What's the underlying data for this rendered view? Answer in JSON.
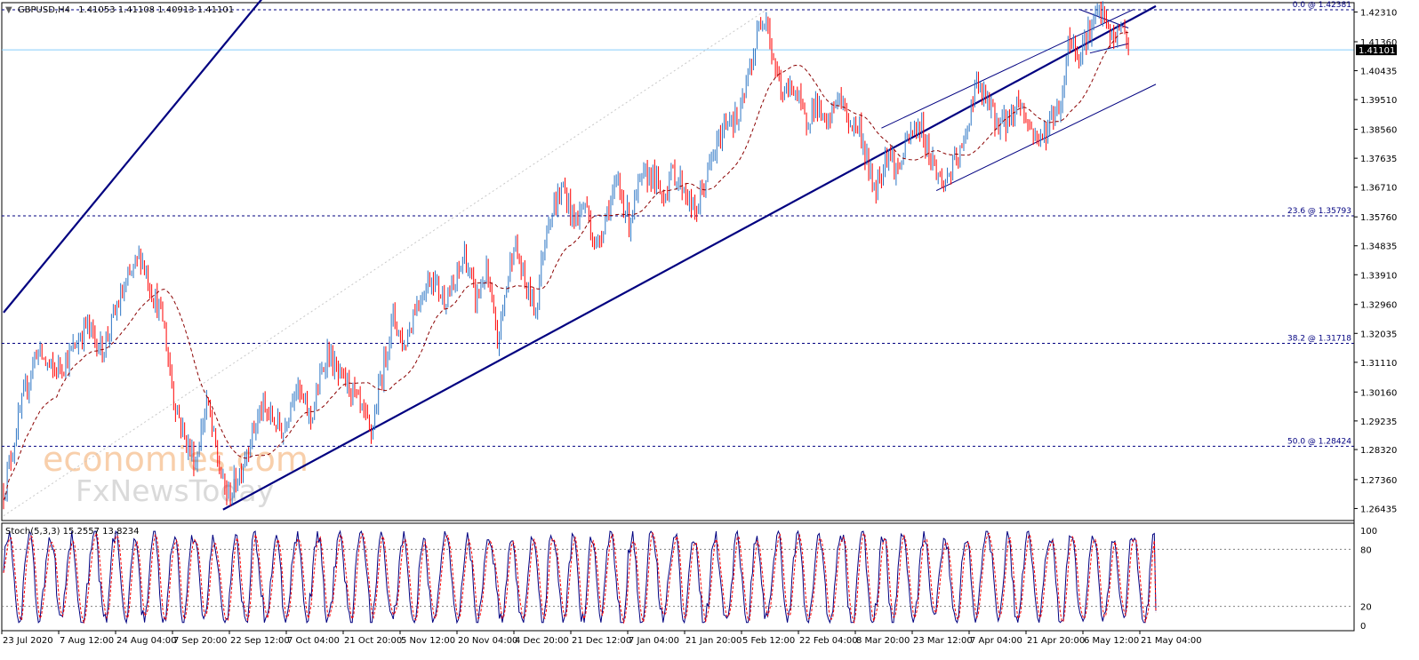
{
  "header": {
    "symbol": "GBPUSD,H4",
    "ohlc": "1.41053 1.41108 1.40913 1.41101"
  },
  "watermark": {
    "line1": "economies.com",
    "line2": "FxNewsToday"
  },
  "colors": {
    "bull": "#2b74c4",
    "bear": "#ff0000",
    "ma": "#8b0000",
    "channel": "#000080",
    "level": "#000080",
    "current_line": "#87cefa",
    "stoch_main": "#000080",
    "stoch_signal": "#ff0000",
    "grid_sep": "#808080"
  },
  "chart_data": [
    {
      "type": "candlestick",
      "title": "GBPUSD,H4",
      "ohlc_last": {
        "open": 1.41053,
        "high": 1.41108,
        "low": 1.40913,
        "close": 1.41101
      },
      "current_price_label": "1.41101",
      "ylim": [
        1.2605,
        1.4261
      ],
      "y_ticks": [
        "1.42310",
        "1.41360",
        "1.40435",
        "1.39510",
        "1.38560",
        "1.37635",
        "1.36710",
        "1.35760",
        "1.34835",
        "1.33910",
        "1.32960",
        "1.32035",
        "1.31110",
        "1.30160",
        "1.29235",
        "1.28320",
        "1.27360",
        "1.26435"
      ],
      "x_ticks": [
        "23 Jul 2020",
        "7 Aug 12:00",
        "24 Aug 04:00",
        "7 Sep 20:00",
        "22 Sep 12:00",
        "7 Oct 04:00",
        "21 Oct 20:00",
        "5 Nov 12:00",
        "20 Nov 04:00",
        "4 Dec 20:00",
        "21 Dec 12:00",
        "7 Jan 04:00",
        "21 Jan 20:00",
        "5 Feb 12:00",
        "22 Feb 04:00",
        "8 Mar 20:00",
        "23 Mar 12:00",
        "7 Apr 04:00",
        "21 Apr 20:00",
        "6 May 12:00",
        "21 May 04:00"
      ],
      "fib_levels": [
        {
          "label": "0.0 @ 1.42381",
          "value": 1.42381
        },
        {
          "label": "23.6 @ 1.35793",
          "value": 1.35793
        },
        {
          "label": "38.2 @ 1.31718",
          "value": 1.31718
        },
        {
          "label": "50.0 @ 1.28424",
          "value": 1.28424
        }
      ],
      "price_path": [
        [
          0,
          1.27
        ],
        [
          3,
          1.295
        ],
        [
          6,
          1.315
        ],
        [
          9,
          1.308
        ],
        [
          12,
          1.313
        ],
        [
          15,
          1.323
        ],
        [
          18,
          1.315
        ],
        [
          21,
          1.33
        ],
        [
          24,
          1.342
        ],
        [
          25,
          1.3455
        ],
        [
          27,
          1.334
        ],
        [
          29,
          1.325
        ],
        [
          31,
          1.3
        ],
        [
          33,
          1.287
        ],
        [
          35,
          1.279
        ],
        [
          37,
          1.299
        ],
        [
          39,
          1.28
        ],
        [
          40,
          1.272
        ],
        [
          41,
          1.268
        ],
        [
          43,
          1.276
        ],
        [
          45,
          1.287
        ],
        [
          47,
          1.296
        ],
        [
          49,
          1.293
        ],
        [
          51,
          1.289
        ],
        [
          53,
          1.304
        ],
        [
          56,
          1.293
        ],
        [
          59,
          1.315
        ],
        [
          61,
          1.306
        ],
        [
          63,
          1.304
        ],
        [
          65,
          1.296
        ],
        [
          67,
          1.288
        ],
        [
          69,
          1.308
        ],
        [
          71,
          1.326
        ],
        [
          73,
          1.316
        ],
        [
          75,
          1.329
        ],
        [
          78,
          1.339
        ],
        [
          80,
          1.332
        ],
        [
          82,
          1.334
        ],
        [
          84,
          1.346
        ],
        [
          86,
          1.331
        ],
        [
          88,
          1.34
        ],
        [
          90,
          1.317
        ],
        [
          93,
          1.35
        ],
        [
          95,
          1.336
        ],
        [
          97,
          1.328
        ],
        [
          99,
          1.356
        ],
        [
          102,
          1.367
        ],
        [
          104,
          1.356
        ],
        [
          106,
          1.362
        ],
        [
          108,
          1.347
        ],
        [
          110,
          1.36
        ],
        [
          112,
          1.368
        ],
        [
          114,
          1.356
        ],
        [
          116,
          1.368
        ],
        [
          118,
          1.372
        ],
        [
          120,
          1.364
        ],
        [
          122,
          1.372
        ],
        [
          124,
          1.367
        ],
        [
          126,
          1.358
        ],
        [
          128,
          1.37
        ],
        [
          130,
          1.38
        ],
        [
          132,
          1.39
        ],
        [
          134,
          1.388
        ],
        [
          136,
          1.405
        ],
        [
          138,
          1.42
        ],
        [
          139,
          1.4238
        ],
        [
          140,
          1.41
        ],
        [
          142,
          1.396
        ],
        [
          144,
          1.4
        ],
        [
          146,
          1.388
        ],
        [
          148,
          1.394
        ],
        [
          150,
          1.385
        ],
        [
          152,
          1.397
        ],
        [
          154,
          1.388
        ],
        [
          156,
          1.386
        ],
        [
          158,
          1.37
        ],
        [
          159,
          1.367
        ],
        [
          161,
          1.379
        ],
        [
          163,
          1.372
        ],
        [
          165,
          1.383
        ],
        [
          167,
          1.387
        ],
        [
          169,
          1.377
        ],
        [
          171,
          1.368
        ],
        [
          173,
          1.373
        ],
        [
          175,
          1.38
        ],
        [
          177,
          1.4
        ],
        [
          179,
          1.395
        ],
        [
          181,
          1.388
        ],
        [
          183,
          1.388
        ],
        [
          185,
          1.395
        ],
        [
          187,
          1.386
        ],
        [
          189,
          1.382
        ],
        [
          191,
          1.389
        ],
        [
          193,
          1.396
        ],
        [
          194,
          1.415
        ],
        [
          196,
          1.41
        ],
        [
          198,
          1.418
        ],
        [
          200,
          1.423
        ],
        [
          202,
          1.414
        ],
        [
          204,
          1.419
        ],
        [
          205,
          1.411
        ]
      ],
      "ma_period": 10,
      "channels": [
        {
          "name": "",
          "points": [
            [
              0,
              1.327
            ],
            [
              100,
              1.54
            ]
          ]
        },
        {
          "name": "",
          "points": [
            [
              40,
              1.264
            ],
            [
              210,
              1.425
            ]
          ]
        }
      ],
      "right_channel_top": [
        [
          160,
          1.386
        ],
        [
          206,
          1.424
        ]
      ],
      "right_channel_bottom": [
        [
          170,
          1.366
        ],
        [
          210,
          1.4
        ]
      ],
      "mini_wedge_upper": [
        [
          196,
          1.424
        ],
        [
          205,
          1.418
        ]
      ],
      "mini_wedge_lower": [
        [
          198,
          1.41
        ],
        [
          205,
          1.413
        ]
      ]
    },
    {
      "type": "line",
      "title": "Stoch(5,3,3) 15.2557 13.8234",
      "indicator": "Stochastic Oscillator",
      "params": "5,3,3",
      "values": [
        15.2557,
        13.8234
      ],
      "series": [
        {
          "name": ""
        },
        {
          "name": ""
        }
      ],
      "ylim": [
        0,
        100
      ],
      "y_ticks": [
        "100",
        "80",
        "20",
        "0"
      ],
      "levels": [
        80,
        20
      ]
    }
  ]
}
